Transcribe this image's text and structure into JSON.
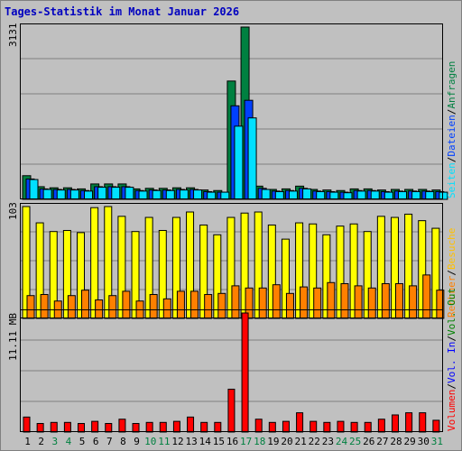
{
  "chart_data": {
    "type": "bar",
    "title": "Tages-Statistik im Monat Januar 2026",
    "categories": [
      "1",
      "2",
      "3",
      "4",
      "5",
      "6",
      "7",
      "8",
      "9",
      "10",
      "11",
      "12",
      "13",
      "14",
      "15",
      "16",
      "17",
      "18",
      "19",
      "20",
      "21",
      "22",
      "23",
      "24",
      "25",
      "26",
      "27",
      "28",
      "29",
      "30",
      "31"
    ],
    "weekend_days": [
      "3",
      "4",
      "10",
      "11",
      "17",
      "18",
      "24",
      "25",
      "31"
    ],
    "panels": [
      {
        "ymax_label": "3131",
        "ylim": [
          0,
          3131
        ],
        "legend": [
          "Anfragen",
          "Dateien",
          "Seiten"
        ],
        "series": [
          {
            "name": "Anfragen",
            "color": "#008040",
            "values": [
              430,
              230,
              210,
              210,
              190,
              280,
              280,
              280,
              190,
              200,
              200,
              210,
              210,
              170,
              160,
              2150,
              3131,
              240,
              180,
              190,
              240,
              180,
              170,
              160,
              190,
              190,
              170,
              180,
              180,
              180,
              170
            ]
          },
          {
            "name": "Dateien",
            "color": "#0040ff",
            "values": [
              370,
              190,
              180,
              180,
              160,
              230,
              230,
              230,
              160,
              170,
              170,
              180,
              180,
              140,
              130,
              1700,
              1800,
              200,
              150,
              160,
              200,
              150,
              140,
              130,
              160,
              160,
              140,
              150,
              150,
              150,
              140
            ]
          },
          {
            "name": "Seiten",
            "color": "#00e0ff",
            "values": [
              360,
              180,
              170,
              170,
              150,
              220,
              220,
              220,
              150,
              160,
              160,
              170,
              170,
              130,
              130,
              1330,
              1480,
              180,
              140,
              150,
              190,
              140,
              130,
              120,
              150,
              150,
              130,
              140,
              140,
              140,
              130
            ]
          }
        ]
      },
      {
        "ymax_label": "103",
        "ylim": [
          0,
          103
        ],
        "legend": [
          "Besuche",
          "Rechner"
        ],
        "series": [
          {
            "name": "Besuche",
            "color": "#ffff00",
            "values": [
              103,
              88,
              80,
              81,
              79,
              102,
              103,
              94,
              80,
              93,
              81,
              93,
              98,
              86,
              77,
              93,
              97,
              98,
              86,
              73,
              88,
              87,
              77,
              85,
              87,
              80,
              94,
              93,
              96,
              90,
              83
            ]
          },
          {
            "name": "Rechner",
            "color": "#ff8000",
            "values": [
              21,
              22,
              16,
              21,
              26,
              17,
              21,
              25,
              16,
              22,
              18,
              25,
              25,
              22,
              23,
              30,
              28,
              28,
              31,
              23,
              29,
              28,
              33,
              32,
              30,
              28,
              32,
              32,
              30,
              40,
              26
            ]
          }
        ]
      },
      {
        "ymax_label": "11.11 MB",
        "ylim": [
          0,
          11.11
        ],
        "legend": [
          "Volumen",
          "Vol. In",
          "Vol. Out"
        ],
        "series": [
          {
            "name": "Volumen",
            "color": "#ff0000",
            "values": [
              1.4,
              0.8,
              0.9,
              0.9,
              0.8,
              1.0,
              0.8,
              1.2,
              0.8,
              0.9,
              0.9,
              1.0,
              1.4,
              0.9,
              0.9,
              4.0,
              11.11,
              1.2,
              0.9,
              1.0,
              1.8,
              1.0,
              0.9,
              1.0,
              0.9,
              0.9,
              1.2,
              1.6,
              1.8,
              1.8,
              1.1
            ]
          }
        ]
      }
    ]
  },
  "colors": {
    "background": "#c0c0c0",
    "grid": "#808080",
    "panel_border": "#000000",
    "title": "#0000c0",
    "weekend_label": "#008040",
    "weekday_label": "#000000",
    "legend_sep": "#000000",
    "vol_in": "#0000ff",
    "vol_out": "#008000",
    "besuche_legend": "#ffc000"
  }
}
